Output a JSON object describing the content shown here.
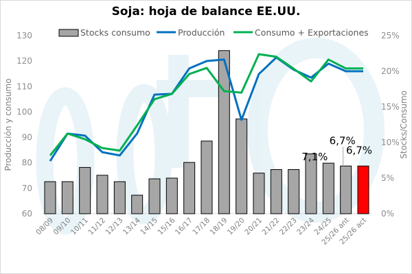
{
  "chart_data": {
    "type": "bar+line",
    "title": "Soja: hoja de balance EE.UU.",
    "ylabel_left": "Producción y consumo",
    "ylabel_right": "Stocks/Consumo",
    "ylim_left": [
      60,
      130
    ],
    "yticks_left": [
      "60",
      "70",
      "80",
      "90",
      "100",
      "110",
      "120",
      "130"
    ],
    "ylim_right": [
      0,
      25
    ],
    "yticks_right": [
      "0%",
      "5%",
      "10%",
      "15%",
      "20%",
      "25%"
    ],
    "legend_position": "top",
    "grid": false,
    "categories": [
      "08/09",
      "09/10",
      "10/11",
      "11/12",
      "12/13",
      "13/14",
      "14/15",
      "15/16",
      "16/17",
      "17/18",
      "18/19",
      "19/20",
      "20/21",
      "21/22",
      "22/23",
      "23/24",
      "24/25",
      "25/26 ant",
      "25/26 act"
    ],
    "bars": {
      "name": "Stocks consumo",
      "axis": "right",
      "unit": "%",
      "values": [
        4.5,
        4.5,
        6.5,
        5.4,
        4.5,
        2.6,
        4.9,
        5.0,
        7.2,
        10.2,
        22.9,
        13.3,
        5.7,
        6.2,
        6.2,
        8.4,
        7.1,
        6.7,
        6.7
      ],
      "color": "#a6a6a6",
      "highlight_color": "#ff0000",
      "highlight_index": 18
    },
    "series": [
      {
        "name": "Producción",
        "axis": "left",
        "color": "#0070c0",
        "values": [
          80.7,
          91.5,
          90.7,
          84.2,
          82.9,
          91.5,
          106.8,
          107.1,
          117.1,
          120.0,
          120.6,
          96.9,
          114.9,
          121.4,
          116.6,
          113.5,
          119.0,
          116.0,
          116.0
        ]
      },
      {
        "name": "Consumo + Exportaciones",
        "axis": "left",
        "color": "#00b050",
        "values": [
          82.9,
          91.5,
          89.3,
          85.8,
          84.8,
          94.7,
          105.0,
          107.1,
          114.9,
          117.3,
          108.2,
          107.6,
          122.7,
          121.7,
          117.0,
          112.0,
          120.6,
          117.1,
          117.1
        ]
      }
    ],
    "data_labels": [
      {
        "index": 16,
        "text": "7,1%"
      },
      {
        "index": 17,
        "text": "6,7%"
      },
      {
        "index": 18,
        "text": "6,7%"
      }
    ]
  }
}
